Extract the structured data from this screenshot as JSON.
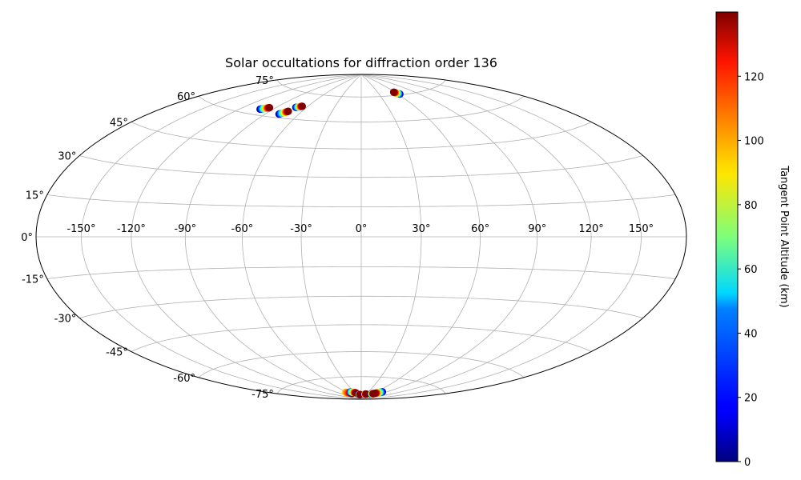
{
  "chart_data": {
    "type": "scatter",
    "projection": "hammer",
    "title": "Solar occultations for diffraction order 136",
    "x_tick_labels": [
      "-150°",
      "-120°",
      "-90°",
      "-60°",
      "-30°",
      "0°",
      "30°",
      "60°",
      "90°",
      "120°",
      "150°"
    ],
    "x_ticks": [
      -150,
      -120,
      -90,
      -60,
      -30,
      0,
      30,
      60,
      90,
      120,
      150
    ],
    "y_tick_labels": [
      "-75°",
      "-60°",
      "-45°",
      "-30°",
      "-15°",
      "0°",
      "15°",
      "30°",
      "45°",
      "60°",
      "75°"
    ],
    "y_ticks": [
      -75,
      -60,
      -45,
      -30,
      -15,
      0,
      15,
      30,
      45,
      60,
      75
    ],
    "grid": true,
    "colorbar": {
      "label": "Tangent Point Altitude (km)",
      "colormap": "jet",
      "min": 0,
      "max": 140,
      "tick_values": [
        0,
        20,
        40,
        60,
        80,
        100,
        120
      ],
      "tick_labels": [
        "0",
        "20",
        "40",
        "60",
        "80",
        "100",
        "120"
      ]
    },
    "tracks": [
      {
        "lon_start": -102,
        "lat_start": 63.0,
        "lon_end": -96,
        "lat_end": 64.5,
        "alt_start": 0,
        "alt_end": 140
      },
      {
        "lon_start": -78,
        "lat_start": 62.0,
        "lon_end": -73,
        "lat_end": 64.0,
        "alt_start": 0,
        "alt_end": 140
      },
      {
        "lon_start": -71,
        "lat_start": 66.5,
        "lon_end": -66,
        "lat_end": 67.5,
        "alt_start": 0,
        "alt_end": 140
      },
      {
        "lon_start": 63,
        "lat_start": 75.5,
        "lon_end": 58,
        "lat_end": 77.0,
        "alt_start": 0,
        "alt_end": 140
      },
      {
        "lon_start": -64,
        "lat_start": -84.5,
        "lon_end": -47,
        "lat_end": -85.8,
        "alt_start": 90,
        "alt_end": 140
      },
      {
        "lon_start": -44,
        "lat_start": -84.6,
        "lon_end": -25,
        "lat_end": -85.5,
        "alt_start": 20,
        "alt_end": 140
      },
      {
        "lon_start": -15,
        "lat_start": -86.8,
        "lon_end": -8,
        "lat_end": -86.8,
        "alt_start": 0,
        "alt_end": 140
      },
      {
        "lon_start": 20,
        "lat_start": -86.5,
        "lon_end": 27,
        "lat_end": -86.3,
        "alt_start": 0,
        "alt_end": 140
      },
      {
        "lon_start": 52,
        "lat_start": -86.0,
        "lon_end": 60,
        "lat_end": -85.6,
        "alt_start": 0,
        "alt_end": 140
      },
      {
        "lon_start": 78,
        "lat_start": -83.8,
        "lon_end": 64,
        "lat_end": -85.3,
        "alt_start": 0,
        "alt_end": 140
      }
    ]
  }
}
